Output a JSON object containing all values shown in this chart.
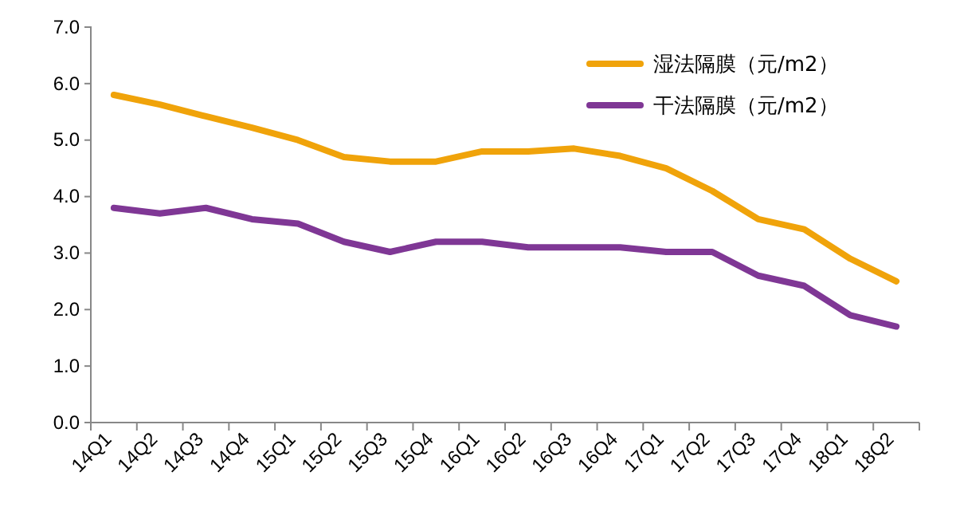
{
  "chart_data": {
    "type": "line",
    "categories": [
      "14Q1",
      "14Q2",
      "14Q3",
      "14Q4",
      "15Q1",
      "15Q2",
      "15Q3",
      "15Q4",
      "16Q1",
      "16Q2",
      "16Q3",
      "16Q4",
      "17Q1",
      "17Q2",
      "17Q3",
      "17Q4",
      "18Q1",
      "18Q2"
    ],
    "series": [
      {
        "name": "湿法隔膜（元/m2）",
        "color": "#f0a30a",
        "values": [
          5.8,
          5.63,
          5.42,
          5.22,
          5.0,
          4.7,
          4.62,
          4.62,
          4.8,
          4.8,
          4.85,
          4.72,
          4.5,
          4.1,
          3.6,
          3.42,
          2.9,
          2.5
        ]
      },
      {
        "name": "干法隔膜（元/m2）",
        "color": "#7f3795",
        "values": [
          3.8,
          3.7,
          3.8,
          3.6,
          3.52,
          3.2,
          3.02,
          3.2,
          3.2,
          3.1,
          3.1,
          3.1,
          3.02,
          3.02,
          2.6,
          2.42,
          1.9,
          1.7
        ]
      }
    ],
    "ylim": [
      0,
      7
    ],
    "yticks": [
      {
        "value": 0,
        "label": "0.0"
      },
      {
        "value": 1,
        "label": "1.0"
      },
      {
        "value": 2,
        "label": "2.0"
      },
      {
        "value": 3,
        "label": "3.0"
      },
      {
        "value": 4,
        "label": "4.0"
      },
      {
        "value": 5,
        "label": "5.0"
      },
      {
        "value": 6,
        "label": "6.0"
      },
      {
        "value": 7,
        "label": "7.0"
      }
    ],
    "grid": false,
    "legend": "top right",
    "marker": "none",
    "line_style": "solid"
  }
}
